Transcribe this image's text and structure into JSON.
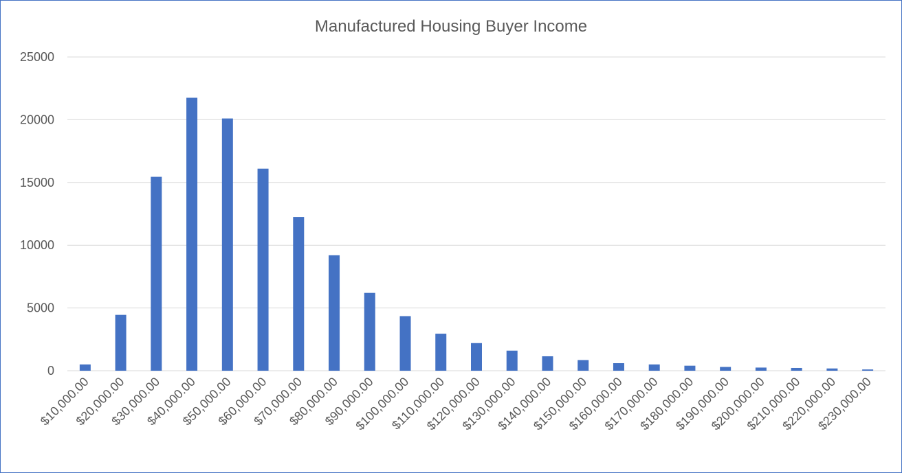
{
  "chart_data": {
    "type": "bar",
    "title": "Manufactured Housing Buyer Income",
    "xlabel": "",
    "ylabel": "",
    "ylim": [
      0,
      25000
    ],
    "yticks": [
      0,
      5000,
      10000,
      15000,
      20000,
      25000
    ],
    "grid": true,
    "legend": "none",
    "bar_color": "#4472c4",
    "categories": [
      "$10,000.00",
      "$20,000.00",
      "$30,000.00",
      "$40,000.00",
      "$50,000.00",
      "$60,000.00",
      "$70,000.00",
      "$80,000.00",
      "$90,000.00",
      "$100,000.00",
      "$110,000.00",
      "$120,000.00",
      "$130,000.00",
      "$140,000.00",
      "$150,000.00",
      "$160,000.00",
      "$170,000.00",
      "$180,000.00",
      "$190,000.00",
      "$200,000.00",
      "$210,000.00",
      "$220,000.00",
      "$230,000.00"
    ],
    "values": [
      500,
      4450,
      15450,
      21750,
      20100,
      16100,
      12250,
      9200,
      6200,
      4350,
      2950,
      2200,
      1600,
      1150,
      850,
      600,
      500,
      400,
      300,
      250,
      220,
      180,
      100
    ]
  }
}
